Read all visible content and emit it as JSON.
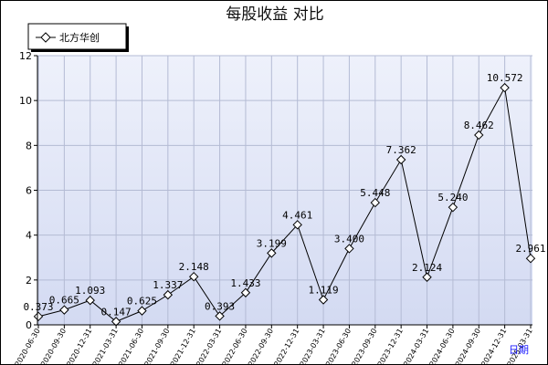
{
  "chart_data": {
    "type": "line",
    "title": "每股收益  对比",
    "x": [
      "2020-06-30",
      "2020-09-30",
      "2020-12-31",
      "2021-03-31",
      "2021-06-30",
      "2021-09-30",
      "2021-12-31",
      "2022-03-31",
      "2022-06-30",
      "2022-09-30",
      "2022-12-31",
      "2023-03-31",
      "2023-06-30",
      "2023-09-30",
      "2023-12-31",
      "2024-03-31",
      "2024-06-30",
      "2024-09-30",
      "2024-12-31",
      "2025-03-31"
    ],
    "series": [
      {
        "name": "北方华创",
        "values": [
          0.373,
          0.665,
          1.093,
          0.147,
          0.625,
          1.337,
          2.148,
          0.393,
          1.433,
          3.199,
          4.461,
          1.119,
          3.4,
          5.448,
          7.362,
          2.124,
          5.24,
          8.462,
          10.572,
          2.961
        ],
        "labels": [
          "0.373",
          "0.665",
          "1.093",
          "0.147",
          "0.625",
          "1.337",
          "2.148",
          "0.393",
          "1.433",
          "3.199",
          "4.461",
          "1.119",
          "3.400",
          "5.448",
          "7.362",
          "2.124",
          "5.240",
          "8.462",
          "10.572",
          "2.961"
        ]
      }
    ],
    "ylim": [
      0,
      12
    ],
    "yticks": [
      "0",
      "2",
      "4",
      "6",
      "8",
      "10",
      "12"
    ],
    "grid": true,
    "legend_position": "top-left",
    "corner_label": "日期",
    "colors": {
      "plot_background": "#dde3f7",
      "grid": "#b4bbd4",
      "line": "#000000",
      "marker_fill": "#ffffff",
      "corner_label": "#1a1aff"
    }
  }
}
